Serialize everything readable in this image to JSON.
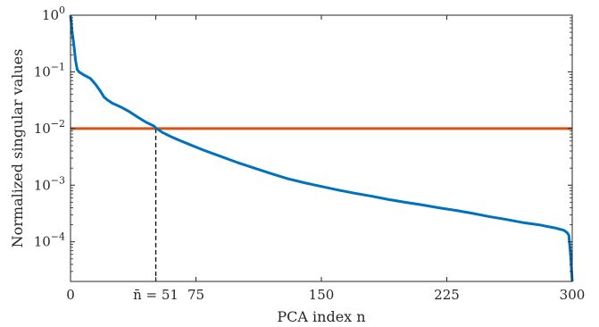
{
  "chart_data": {
    "type": "line",
    "xlabel": "PCA index n",
    "ylabel": "Normalized singular values",
    "xlim": [
      0,
      300
    ],
    "ylim": [
      2e-05,
      1
    ],
    "yscale": "log",
    "grid": false,
    "x_ticks": [
      {
        "value": 0,
        "label": "0"
      },
      {
        "value": 51,
        "label": "n̄ = 51"
      },
      {
        "value": 75,
        "label": "75"
      },
      {
        "value": 150,
        "label": "150"
      },
      {
        "value": 225,
        "label": "225"
      },
      {
        "value": 300,
        "label": "300"
      }
    ],
    "y_ticks": [
      {
        "value": 1,
        "base": "10",
        "exp": "0"
      },
      {
        "value": 0.1,
        "base": "10",
        "exp": "−1"
      },
      {
        "value": 0.01,
        "base": "10",
        "exp": "−2"
      },
      {
        "value": 0.001,
        "base": "10",
        "exp": "−3"
      },
      {
        "value": 0.0001,
        "base": "10",
        "exp": "−4"
      }
    ],
    "series": [
      {
        "color": "#0072BD",
        "x": [
          0,
          1,
          2,
          3,
          4,
          5,
          8,
          10,
          12,
          15,
          18,
          20,
          22,
          25,
          30,
          35,
          40,
          45,
          50,
          51,
          55,
          60,
          65,
          70,
          75,
          80,
          90,
          100,
          110,
          120,
          130,
          140,
          150,
          160,
          170,
          180,
          190,
          200,
          210,
          220,
          230,
          240,
          250,
          260,
          270,
          280,
          290,
          295,
          297,
          298,
          299,
          300
        ],
        "y": [
          1,
          0.5,
          0.3,
          0.16,
          0.11,
          0.1,
          0.088,
          0.082,
          0.076,
          0.06,
          0.045,
          0.036,
          0.032,
          0.028,
          0.024,
          0.02,
          0.016,
          0.013,
          0.011,
          0.0102,
          0.0085,
          0.0072,
          0.0062,
          0.0054,
          0.0047,
          0.0041,
          0.0032,
          0.0025,
          0.002,
          0.0016,
          0.0013,
          0.0011,
          0.00095,
          0.00082,
          0.00072,
          0.00064,
          0.00056,
          0.0005,
          0.00045,
          0.0004,
          0.00036,
          0.00032,
          0.00028,
          0.00025,
          0.00022,
          0.0002,
          0.000175,
          0.00016,
          0.000145,
          0.00013,
          6e-05,
          2e-05
        ]
      }
    ],
    "threshold": {
      "y": 0.01,
      "color": "#D95319"
    },
    "marker": {
      "x": 51,
      "from_y": 0.01,
      "style": "dashed",
      "color": "#000000"
    },
    "colors": {
      "axis": "#262626",
      "background": "#ffffff"
    }
  }
}
